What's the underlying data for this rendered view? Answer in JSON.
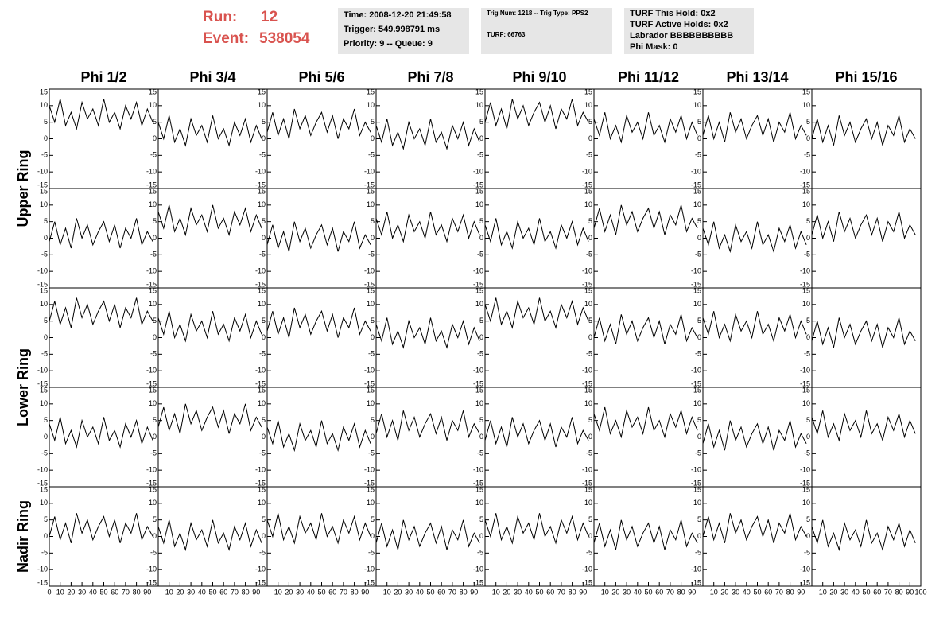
{
  "header": {
    "run_label": "Run:",
    "run": "12",
    "event_label": "Event:",
    "event": "538054",
    "box1": [
      "Time: 2008-12-20 21:49:58",
      "Trigger: 549.998791 ms",
      "Priority: 9 -- Queue: 9"
    ],
    "box2": [
      "Trig Num: 1218 -- Trig Type: PPS2",
      "TURF: 66763"
    ],
    "box3": [
      "TURF This Hold: 0x2",
      "TURF Active Holds: 0x2",
      "Labrador BBBBBBBBBB",
      "Phi Mask: 0"
    ]
  },
  "chart_data": {
    "type": "line",
    "color": "#000000",
    "columns": [
      "Phi 1/2",
      "Phi 3/4",
      "Phi 5/6",
      "Phi 7/8",
      "Phi 9/10",
      "Phi 11/12",
      "Phi 13/14",
      "Phi 15/16"
    ],
    "row_labels": [
      "Upper Ring",
      "Lower Ring",
      "Nadir Ring"
    ],
    "xlim": [
      0,
      100
    ],
    "ylim": [
      -15,
      15
    ],
    "xticks": [
      0,
      10,
      20,
      30,
      40,
      50,
      60,
      70,
      80,
      90,
      100
    ],
    "yticks": [
      -15,
      -10,
      -5,
      0,
      5,
      10,
      15
    ],
    "x": [
      0,
      5,
      10,
      15,
      20,
      25,
      30,
      35,
      40,
      45,
      50,
      55,
      60,
      65,
      70,
      75,
      80,
      85,
      90,
      95
    ],
    "series": [
      {
        "values": [
          10,
          5,
          12,
          4,
          8,
          3,
          11,
          6,
          9,
          4,
          12,
          5,
          8,
          3,
          10,
          6,
          11,
          4,
          9,
          5
        ]
      },
      {
        "values": [
          5,
          0,
          7,
          -1,
          3,
          -2,
          6,
          1,
          4,
          -1,
          7,
          0,
          3,
          -2,
          5,
          1,
          6,
          -1,
          4,
          0
        ]
      },
      {
        "values": [
          2,
          8,
          1,
          6,
          0,
          9,
          3,
          7,
          1,
          5,
          8,
          2,
          7,
          0,
          6,
          3,
          9,
          1,
          5,
          2
        ]
      },
      {
        "values": [
          4,
          -1,
          6,
          -2,
          2,
          -3,
          5,
          0,
          3,
          -2,
          6,
          -1,
          2,
          -3,
          4,
          0,
          5,
          -2,
          3,
          -1
        ]
      },
      {
        "values": [
          5,
          11,
          4,
          9,
          3,
          12,
          6,
          10,
          4,
          8,
          11,
          5,
          10,
          3,
          9,
          6,
          12,
          4,
          8,
          5
        ]
      },
      {
        "values": [
          6,
          1,
          8,
          0,
          4,
          -1,
          7,
          2,
          5,
          0,
          8,
          1,
          4,
          -1,
          6,
          2,
          7,
          0,
          5,
          1
        ]
      },
      {
        "values": [
          1,
          7,
          0,
          5,
          -1,
          8,
          2,
          6,
          0,
          4,
          7,
          1,
          6,
          -1,
          5,
          2,
          8,
          0,
          4,
          1
        ]
      },
      {
        "values": [
          0,
          6,
          -1,
          4,
          -2,
          7,
          1,
          5,
          -1,
          3,
          6,
          0,
          5,
          -2,
          4,
          1,
          7,
          -1,
          3,
          0
        ]
      },
      {
        "values": [
          -1,
          5,
          -2,
          3,
          -3,
          6,
          0,
          4,
          -2,
          2,
          5,
          -1,
          4,
          -3,
          3,
          0,
          6,
          -2,
          2,
          -1
        ]
      },
      {
        "values": [
          8,
          3,
          10,
          2,
          6,
          1,
          9,
          4,
          7,
          2,
          10,
          3,
          6,
          1,
          8,
          4,
          9,
          2,
          7,
          3
        ]
      },
      {
        "values": [
          -2,
          4,
          -3,
          2,
          -4,
          5,
          -1,
          3,
          -3,
          1,
          4,
          -2,
          3,
          -4,
          2,
          -1,
          5,
          -3,
          1,
          -2
        ]
      },
      {
        "values": [
          6,
          1,
          8,
          0,
          4,
          -1,
          7,
          2,
          5,
          0,
          8,
          1,
          4,
          -1,
          6,
          2,
          7,
          0,
          5,
          1
        ]
      },
      {
        "values": [
          4,
          -1,
          6,
          -2,
          2,
          -3,
          5,
          0,
          3,
          -2,
          6,
          -1,
          2,
          -3,
          4,
          0,
          5,
          -2,
          3,
          -1
        ]
      },
      {
        "values": [
          3,
          9,
          2,
          7,
          1,
          10,
          4,
          8,
          2,
          6,
          9,
          3,
          8,
          1,
          7,
          4,
          10,
          2,
          6,
          3
        ]
      },
      {
        "values": [
          3,
          -2,
          5,
          -3,
          1,
          -4,
          4,
          -1,
          2,
          -3,
          5,
          -2,
          1,
          -4,
          3,
          -1,
          4,
          -3,
          2,
          -2
        ]
      },
      {
        "values": [
          1,
          7,
          0,
          5,
          -1,
          8,
          2,
          6,
          0,
          4,
          7,
          1,
          6,
          -1,
          5,
          2,
          8,
          0,
          4,
          1
        ]
      },
      {
        "values": [
          5,
          11,
          4,
          9,
          3,
          12,
          6,
          10,
          4,
          8,
          11,
          5,
          10,
          3,
          9,
          6,
          12,
          4,
          8,
          5
        ]
      },
      {
        "values": [
          6,
          1,
          8,
          0,
          4,
          -1,
          7,
          2,
          5,
          0,
          8,
          1,
          4,
          -1,
          6,
          2,
          7,
          0,
          5,
          1
        ]
      },
      {
        "values": [
          2,
          8,
          1,
          6,
          0,
          9,
          3,
          7,
          1,
          5,
          8,
          2,
          7,
          0,
          6,
          3,
          9,
          1,
          5,
          2
        ]
      },
      {
        "values": [
          4,
          -1,
          6,
          -2,
          2,
          -3,
          5,
          0,
          3,
          -2,
          6,
          -1,
          2,
          -3,
          4,
          0,
          5,
          -2,
          3,
          -1
        ]
      },
      {
        "values": [
          10,
          5,
          12,
          4,
          8,
          3,
          11,
          6,
          9,
          4,
          12,
          5,
          8,
          3,
          10,
          6,
          11,
          4,
          9,
          5
        ]
      },
      {
        "values": [
          0,
          6,
          -1,
          4,
          -2,
          7,
          1,
          5,
          -1,
          3,
          6,
          0,
          5,
          -2,
          4,
          1,
          7,
          -1,
          3,
          0
        ]
      },
      {
        "values": [
          6,
          1,
          8,
          0,
          4,
          -1,
          7,
          2,
          5,
          0,
          8,
          1,
          4,
          -1,
          6,
          2,
          7,
          0,
          5,
          1
        ]
      },
      {
        "values": [
          -1,
          5,
          -2,
          3,
          -3,
          6,
          0,
          4,
          -2,
          2,
          5,
          -1,
          4,
          -3,
          3,
          0,
          6,
          -2,
          2,
          -1
        ]
      },
      {
        "values": [
          4,
          -1,
          6,
          -2,
          2,
          -3,
          5,
          0,
          3,
          -2,
          6,
          -1,
          2,
          -3,
          4,
          0,
          5,
          -2,
          3,
          -1
        ]
      },
      {
        "values": [
          3,
          9,
          2,
          7,
          1,
          10,
          4,
          8,
          2,
          6,
          9,
          3,
          8,
          1,
          7,
          4,
          10,
          2,
          6,
          3
        ]
      },
      {
        "values": [
          3,
          -2,
          5,
          -3,
          1,
          -4,
          4,
          -1,
          2,
          -3,
          5,
          -2,
          1,
          -4,
          3,
          -1,
          4,
          -3,
          2,
          -2
        ]
      },
      {
        "values": [
          1,
          7,
          0,
          5,
          -1,
          8,
          2,
          6,
          0,
          4,
          7,
          1,
          6,
          -1,
          5,
          2,
          8,
          0,
          4,
          1
        ]
      },
      {
        "values": [
          -1,
          5,
          -2,
          3,
          -3,
          6,
          0,
          4,
          -2,
          2,
          5,
          -1,
          4,
          -3,
          3,
          0,
          6,
          -2,
          2,
          -1
        ]
      },
      {
        "values": [
          7,
          2,
          9,
          1,
          5,
          0,
          8,
          3,
          6,
          1,
          9,
          2,
          5,
          0,
          7,
          3,
          8,
          1,
          6,
          2
        ]
      },
      {
        "values": [
          -2,
          4,
          -3,
          2,
          -4,
          5,
          -1,
          3,
          -3,
          1,
          4,
          -2,
          3,
          -4,
          2,
          -1,
          5,
          -3,
          1,
          -2
        ]
      },
      {
        "values": [
          6,
          1,
          8,
          0,
          4,
          -1,
          7,
          2,
          5,
          0,
          8,
          1,
          4,
          -1,
          6,
          2,
          7,
          0,
          5,
          1
        ]
      },
      {
        "values": [
          0,
          6,
          -1,
          4,
          -2,
          7,
          1,
          5,
          -1,
          3,
          6,
          0,
          5,
          -2,
          4,
          1,
          7,
          -1,
          3,
          0
        ]
      },
      {
        "values": [
          3,
          -2,
          5,
          -3,
          1,
          -4,
          4,
          -1,
          2,
          -3,
          5,
          -2,
          1,
          -4,
          3,
          -1,
          4,
          -3,
          2,
          -2
        ]
      },
      {
        "values": [
          5,
          0,
          7,
          -1,
          3,
          -2,
          6,
          1,
          4,
          -1,
          7,
          0,
          3,
          -2,
          5,
          1,
          6,
          -1,
          4,
          0
        ]
      },
      {
        "values": [
          -2,
          4,
          -3,
          2,
          -4,
          5,
          -1,
          3,
          -3,
          1,
          4,
          -2,
          3,
          -4,
          2,
          -1,
          5,
          -3,
          1,
          -2
        ]
      },
      {
        "values": [
          5,
          0,
          7,
          -1,
          3,
          -2,
          6,
          1,
          4,
          -1,
          7,
          0,
          3,
          -2,
          5,
          1,
          6,
          -1,
          4,
          0
        ]
      },
      {
        "values": [
          -2,
          4,
          -3,
          2,
          -4,
          5,
          -1,
          3,
          -3,
          1,
          4,
          -2,
          3,
          -4,
          2,
          -1,
          5,
          -3,
          1,
          -2
        ]
      },
      {
        "values": [
          0,
          6,
          -1,
          4,
          -2,
          7,
          1,
          5,
          -1,
          3,
          6,
          0,
          5,
          -2,
          4,
          1,
          7,
          -1,
          3,
          0
        ]
      },
      {
        "values": [
          3,
          -2,
          5,
          -3,
          1,
          -4,
          4,
          -1,
          2,
          -3,
          5,
          -2,
          1,
          -4,
          3,
          -1,
          4,
          -3,
          2,
          -2
        ]
      }
    ]
  }
}
